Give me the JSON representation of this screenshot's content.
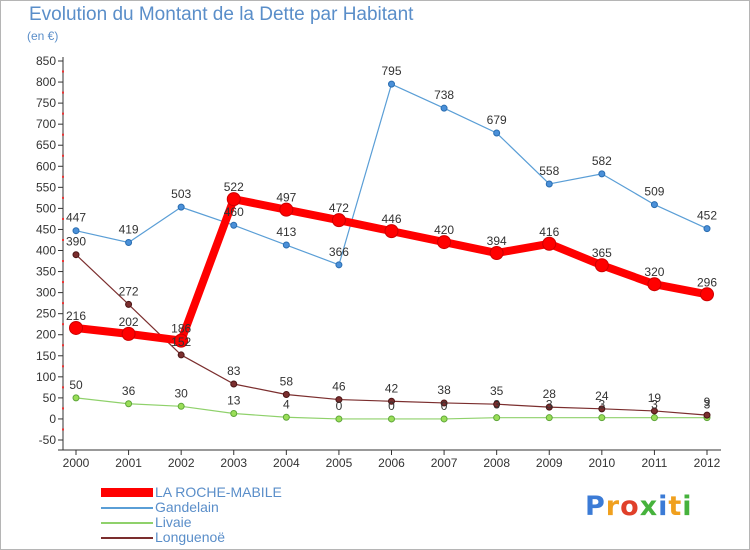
{
  "header": {
    "title": "Evolution du Montant de la Dette par Habitant",
    "subtitle": "(en €)"
  },
  "logo": {
    "text": "Proxiti"
  },
  "chart_data": {
    "type": "line",
    "categories": [
      "2000",
      "2001",
      "2002",
      "2003",
      "2004",
      "2005",
      "2006",
      "2007",
      "2008",
      "2009",
      "2010",
      "2011",
      "2012"
    ],
    "ylim": [
      -50,
      850
    ],
    "yticks": [
      -50,
      0,
      50,
      100,
      150,
      200,
      250,
      300,
      350,
      400,
      450,
      500,
      550,
      600,
      650,
      700,
      750,
      800,
      850
    ],
    "grid": false,
    "legend_position": "bottom-left",
    "series": [
      {
        "name": "LA ROCHE-MABILE",
        "color": "#ff0000",
        "values": [
          216,
          202,
          186,
          522,
          497,
          472,
          446,
          420,
          394,
          416,
          365,
          320,
          296
        ]
      },
      {
        "name": "Gandelain",
        "color": "#5a9ed6",
        "values": [
          447,
          419,
          503,
          460,
          413,
          366,
          795,
          738,
          679,
          558,
          582,
          509,
          452
        ]
      },
      {
        "name": "Livaie",
        "color": "#8fd16b",
        "values": [
          50,
          36,
          30,
          13,
          4,
          0,
          0,
          0,
          3,
          3,
          3,
          3,
          3
        ]
      },
      {
        "name": "Longuenoë",
        "color": "#7b2e2e",
        "values": [
          390,
          272,
          152,
          83,
          58,
          46,
          42,
          38,
          35,
          28,
          24,
          19,
          9
        ]
      }
    ]
  }
}
